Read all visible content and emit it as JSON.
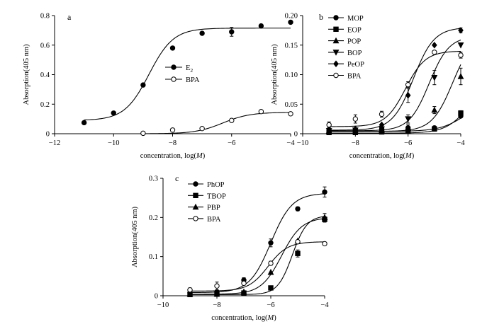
{
  "chart_data": [
    {
      "type": "scatter",
      "panel_label": "a",
      "xlabel": "concentration, log(M)",
      "ylabel": "Absorption(405 nm)",
      "xlim": [
        -12,
        -4
      ],
      "ylim": [
        0,
        0.8
      ],
      "xticks": [
        -12,
        -10,
        -8,
        -6,
        -4
      ],
      "yticks": [
        0,
        0.2,
        0.4,
        0.6,
        0.8
      ],
      "ytick_labels": [
        "0",
        "0.2",
        "0.4",
        "0.6",
        "0.8"
      ],
      "legend_position": "center-right",
      "series": [
        {
          "name": "E2",
          "marker": "filled-circle",
          "x": [
            -11,
            -10,
            -9,
            -8,
            -7,
            -6,
            -5,
            -4
          ],
          "y": [
            0.075,
            0.14,
            0.33,
            0.58,
            0.68,
            0.69,
            0.73,
            0.755
          ],
          "err": [
            0,
            0,
            0,
            0,
            0,
            0.03,
            0,
            0
          ],
          "fit": {
            "bottom": 0.09,
            "top": 0.715,
            "ec50": -8.8,
            "hill": 1.05
          }
        },
        {
          "name": "BPA",
          "marker": "open-circle",
          "x": [
            -9,
            -8,
            -7,
            -6,
            -5,
            -4
          ],
          "y": [
            0.003,
            0.025,
            0.035,
            0.09,
            0.15,
            0.135
          ],
          "err": [
            0,
            0,
            0,
            0,
            0.01,
            0
          ],
          "fit": {
            "bottom": 0.0,
            "top": 0.145,
            "ec50": -6.3,
            "hill": 0.95
          }
        }
      ]
    },
    {
      "type": "scatter",
      "panel_label": "b",
      "xlabel": "concentration, log(M)",
      "ylabel": "Absorption(405 nm)",
      "xlim": [
        -10,
        -4
      ],
      "ylim": [
        0,
        0.2
      ],
      "xticks": [
        -10,
        -8,
        -6,
        -4
      ],
      "yticks": [
        0,
        0.05,
        0.1,
        0.15,
        0.2
      ],
      "ytick_labels": [
        "0",
        "0.05",
        "0.10",
        "0.15",
        "0.20"
      ],
      "legend_position": "top-left",
      "series": [
        {
          "name": "MOP",
          "marker": "filled-circle",
          "x": [
            -9,
            -8,
            -7,
            -6,
            -5,
            -4
          ],
          "y": [
            0.005,
            0.005,
            0.008,
            0.01,
            0.01,
            0.03
          ],
          "err": [
            0,
            0,
            0,
            0,
            0,
            0
          ],
          "fit": {
            "bottom": 0.004,
            "top": 0.06,
            "ec50": -3.8,
            "hill": 0.9
          }
        },
        {
          "name": "EOP",
          "marker": "filled-square",
          "x": [
            -9,
            -8,
            -7,
            -6,
            -5,
            -4
          ],
          "y": [
            0.002,
            0.002,
            0.003,
            0.004,
            0.008,
            0.035
          ],
          "err": [
            0,
            0,
            0,
            0,
            0,
            0.004
          ],
          "fit": {
            "bottom": 0.001,
            "top": 0.09,
            "ec50": -3.7,
            "hill": 1.0
          }
        },
        {
          "name": "POP",
          "marker": "filled-triangle-up",
          "x": [
            -9,
            -8,
            -7,
            -6,
            -5,
            -4
          ],
          "y": [
            0.005,
            0.005,
            0.006,
            0.01,
            0.04,
            0.097
          ],
          "err": [
            0,
            0,
            0,
            0.005,
            0.006,
            0.014
          ],
          "fit": {
            "bottom": 0.004,
            "top": 0.17,
            "ec50": -4.3,
            "hill": 1.1
          }
        },
        {
          "name": "BOP",
          "marker": "filled-triangle-down",
          "x": [
            -9,
            -8,
            -7,
            -6,
            -5,
            -4
          ],
          "y": [
            0.005,
            0.006,
            0.008,
            0.025,
            0.095,
            0.15
          ],
          "err": [
            0,
            0,
            0,
            0.007,
            0.012,
            0
          ],
          "fit": {
            "bottom": 0.005,
            "top": 0.165,
            "ec50": -5.2,
            "hill": 1.15
          }
        },
        {
          "name": "PeOP",
          "marker": "filled-diamond",
          "x": [
            -9,
            -8,
            -7,
            -6,
            -5,
            -4
          ],
          "y": [
            0.008,
            0.008,
            0.015,
            0.065,
            0.15,
            0.175
          ],
          "err": [
            0,
            0,
            0,
            0.012,
            0,
            0.004
          ],
          "fit": {
            "bottom": 0.006,
            "top": 0.18,
            "ec50": -5.8,
            "hill": 1.1
          }
        },
        {
          "name": "BPA",
          "marker": "open-circle",
          "x": [
            -9,
            -8,
            -7,
            -6,
            -5,
            -4
          ],
          "y": [
            0.015,
            0.025,
            0.033,
            0.083,
            0.138,
            0.133
          ],
          "err": [
            0.005,
            0.007,
            0.005,
            0.005,
            0,
            0.005
          ],
          "fit": {
            "bottom": 0.012,
            "top": 0.14,
            "ec50": -6.1,
            "hill": 1.15
          }
        }
      ]
    },
    {
      "type": "scatter",
      "panel_label": "c",
      "xlabel": "concentration, log(M)",
      "ylabel": "Absorption(405 nm)",
      "xlim": [
        -10,
        -4
      ],
      "ylim": [
        0,
        0.3
      ],
      "xticks": [
        -10,
        -8,
        -6,
        -4
      ],
      "yticks": [
        0,
        0.1,
        0.2,
        0.3
      ],
      "ytick_labels": [
        "0",
        "0.1",
        "0.2",
        "0.3"
      ],
      "legend_position": "top-left",
      "series": [
        {
          "name": "PhOP",
          "marker": "filled-circle",
          "x": [
            -9,
            -8,
            -7,
            -6,
            -5,
            -4
          ],
          "y": [
            0.008,
            0.01,
            0.04,
            0.135,
            0.222,
            0.265
          ],
          "err": [
            0,
            0,
            0.006,
            0.01,
            0.005,
            0.013
          ],
          "fit": {
            "bottom": 0.008,
            "top": 0.262,
            "ec50": -6.0,
            "hill": 1.1
          }
        },
        {
          "name": "TBOP",
          "marker": "filled-square",
          "x": [
            -9,
            -8,
            -7,
            -6,
            -5,
            -4
          ],
          "y": [
            0.003,
            0.004,
            0.007,
            0.02,
            0.108,
            0.195
          ],
          "err": [
            0,
            0,
            0,
            0,
            0.009,
            0.007
          ],
          "fit": {
            "bottom": 0.003,
            "top": 0.205,
            "ec50": -5.2,
            "hill": 1.6
          }
        },
        {
          "name": "PBP",
          "marker": "filled-triangle-up",
          "x": [
            -9,
            -8,
            -7,
            -6,
            -5,
            -4
          ],
          "y": [
            0.005,
            0.005,
            0.01,
            0.06,
            0.14,
            0.2
          ],
          "err": [
            0,
            0,
            0,
            0,
            0,
            0.01
          ],
          "fit": {
            "bottom": 0.004,
            "top": 0.2,
            "ec50": -5.6,
            "hill": 1.15
          }
        },
        {
          "name": "BPA",
          "marker": "open-circle",
          "x": [
            -9,
            -8,
            -7,
            -6,
            -5,
            -4
          ],
          "y": [
            0.015,
            0.025,
            0.032,
            0.083,
            0.138,
            0.133
          ],
          "err": [
            0.005,
            0.01,
            0.005,
            0.005,
            0,
            0.004
          ],
          "fit": {
            "bottom": 0.012,
            "top": 0.138,
            "ec50": -6.1,
            "hill": 1.2
          }
        }
      ]
    }
  ]
}
